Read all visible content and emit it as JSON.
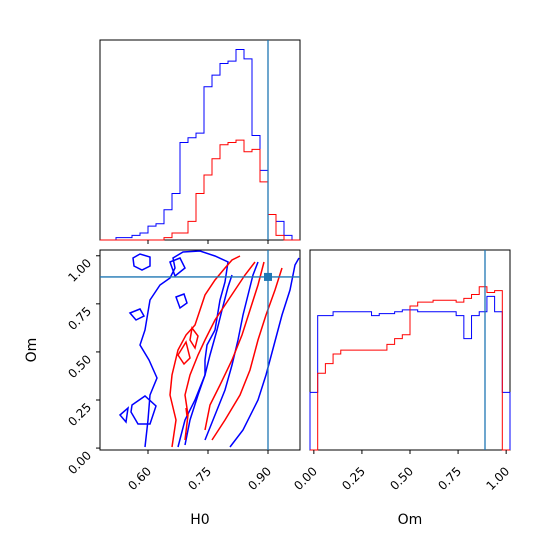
{
  "chart_data": {
    "type": "corner",
    "truth": {
      "H0": 0.9,
      "Om": 0.89
    },
    "colors": {
      "blue": "#0000ff",
      "red": "#ff0000",
      "truth": "#1f77b4"
    },
    "panels": {
      "h0_hist": {
        "type": "histogram",
        "xlim": [
          0.48,
          0.98
        ],
        "bin_edges": [
          0.48,
          0.5,
          0.52,
          0.54,
          0.56,
          0.58,
          0.6,
          0.62,
          0.64,
          0.66,
          0.68,
          0.7,
          0.72,
          0.74,
          0.76,
          0.78,
          0.8,
          0.82,
          0.84,
          0.86,
          0.88,
          0.9,
          0.92,
          0.94,
          0.96,
          0.98
        ],
        "series": [
          {
            "color": "blue",
            "values": [
              0,
              0,
              1,
              1,
              2,
              3,
              6,
              7,
              13,
              20,
              42,
              44,
              46,
              66,
              71,
              76,
              77,
              82,
              78,
              45,
              30,
              11,
              8,
              2,
              0
            ]
          },
          {
            "color": "red",
            "values": [
              0,
              0,
              0,
              0,
              0,
              0,
              0,
              0,
              1,
              3,
              3,
              8,
              20,
              28,
              35,
              41,
              42,
              43,
              38,
              39,
              25,
              11,
              2,
              0,
              0
            ]
          }
        ]
      },
      "om_hist": {
        "type": "histogram",
        "xlim": [
          -0.02,
          1.02
        ],
        "xticks": [
          "0.00",
          "0.25",
          "0.50",
          "0.75",
          "1.00"
        ],
        "xlabel": "Om",
        "bin_edges": [
          -0.02,
          0.02,
          0.06,
          0.1,
          0.14,
          0.18,
          0.22,
          0.26,
          0.3,
          0.34,
          0.38,
          0.42,
          0.46,
          0.5,
          0.54,
          0.58,
          0.62,
          0.66,
          0.7,
          0.74,
          0.78,
          0.82,
          0.86,
          0.9,
          0.94,
          0.98,
          1.02
        ],
        "series": [
          {
            "color": "blue",
            "values": [
              0.3,
              0.7,
              0.7,
              0.72,
              0.72,
              0.72,
              0.72,
              0.72,
              0.7,
              0.71,
              0.71,
              0.72,
              0.73,
              0.73,
              0.72,
              0.72,
              0.72,
              0.72,
              0.72,
              0.7,
              0.58,
              0.7,
              0.72,
              0.8,
              0.72,
              0.3
            ]
          },
          {
            "color": "red",
            "values": [
              0.0,
              0.4,
              0.45,
              0.5,
              0.52,
              0.52,
              0.52,
              0.52,
              0.52,
              0.52,
              0.55,
              0.58,
              0.6,
              0.75,
              0.77,
              0.77,
              0.78,
              0.78,
              0.78,
              0.77,
              0.79,
              0.81,
              0.85,
              0.82,
              0.83,
              0.0
            ]
          }
        ]
      },
      "joint": {
        "type": "contour",
        "xlim": [
          0.48,
          0.98
        ],
        "ylim": [
          -0.01,
          1.03
        ],
        "xticks": [
          "0.60",
          "0.75",
          "0.90"
        ],
        "yticks": [
          "0.00",
          "0.25",
          "0.50",
          "0.75",
          "1.00"
        ],
        "xlabel": "H0",
        "ylabel": "Om"
      }
    }
  }
}
